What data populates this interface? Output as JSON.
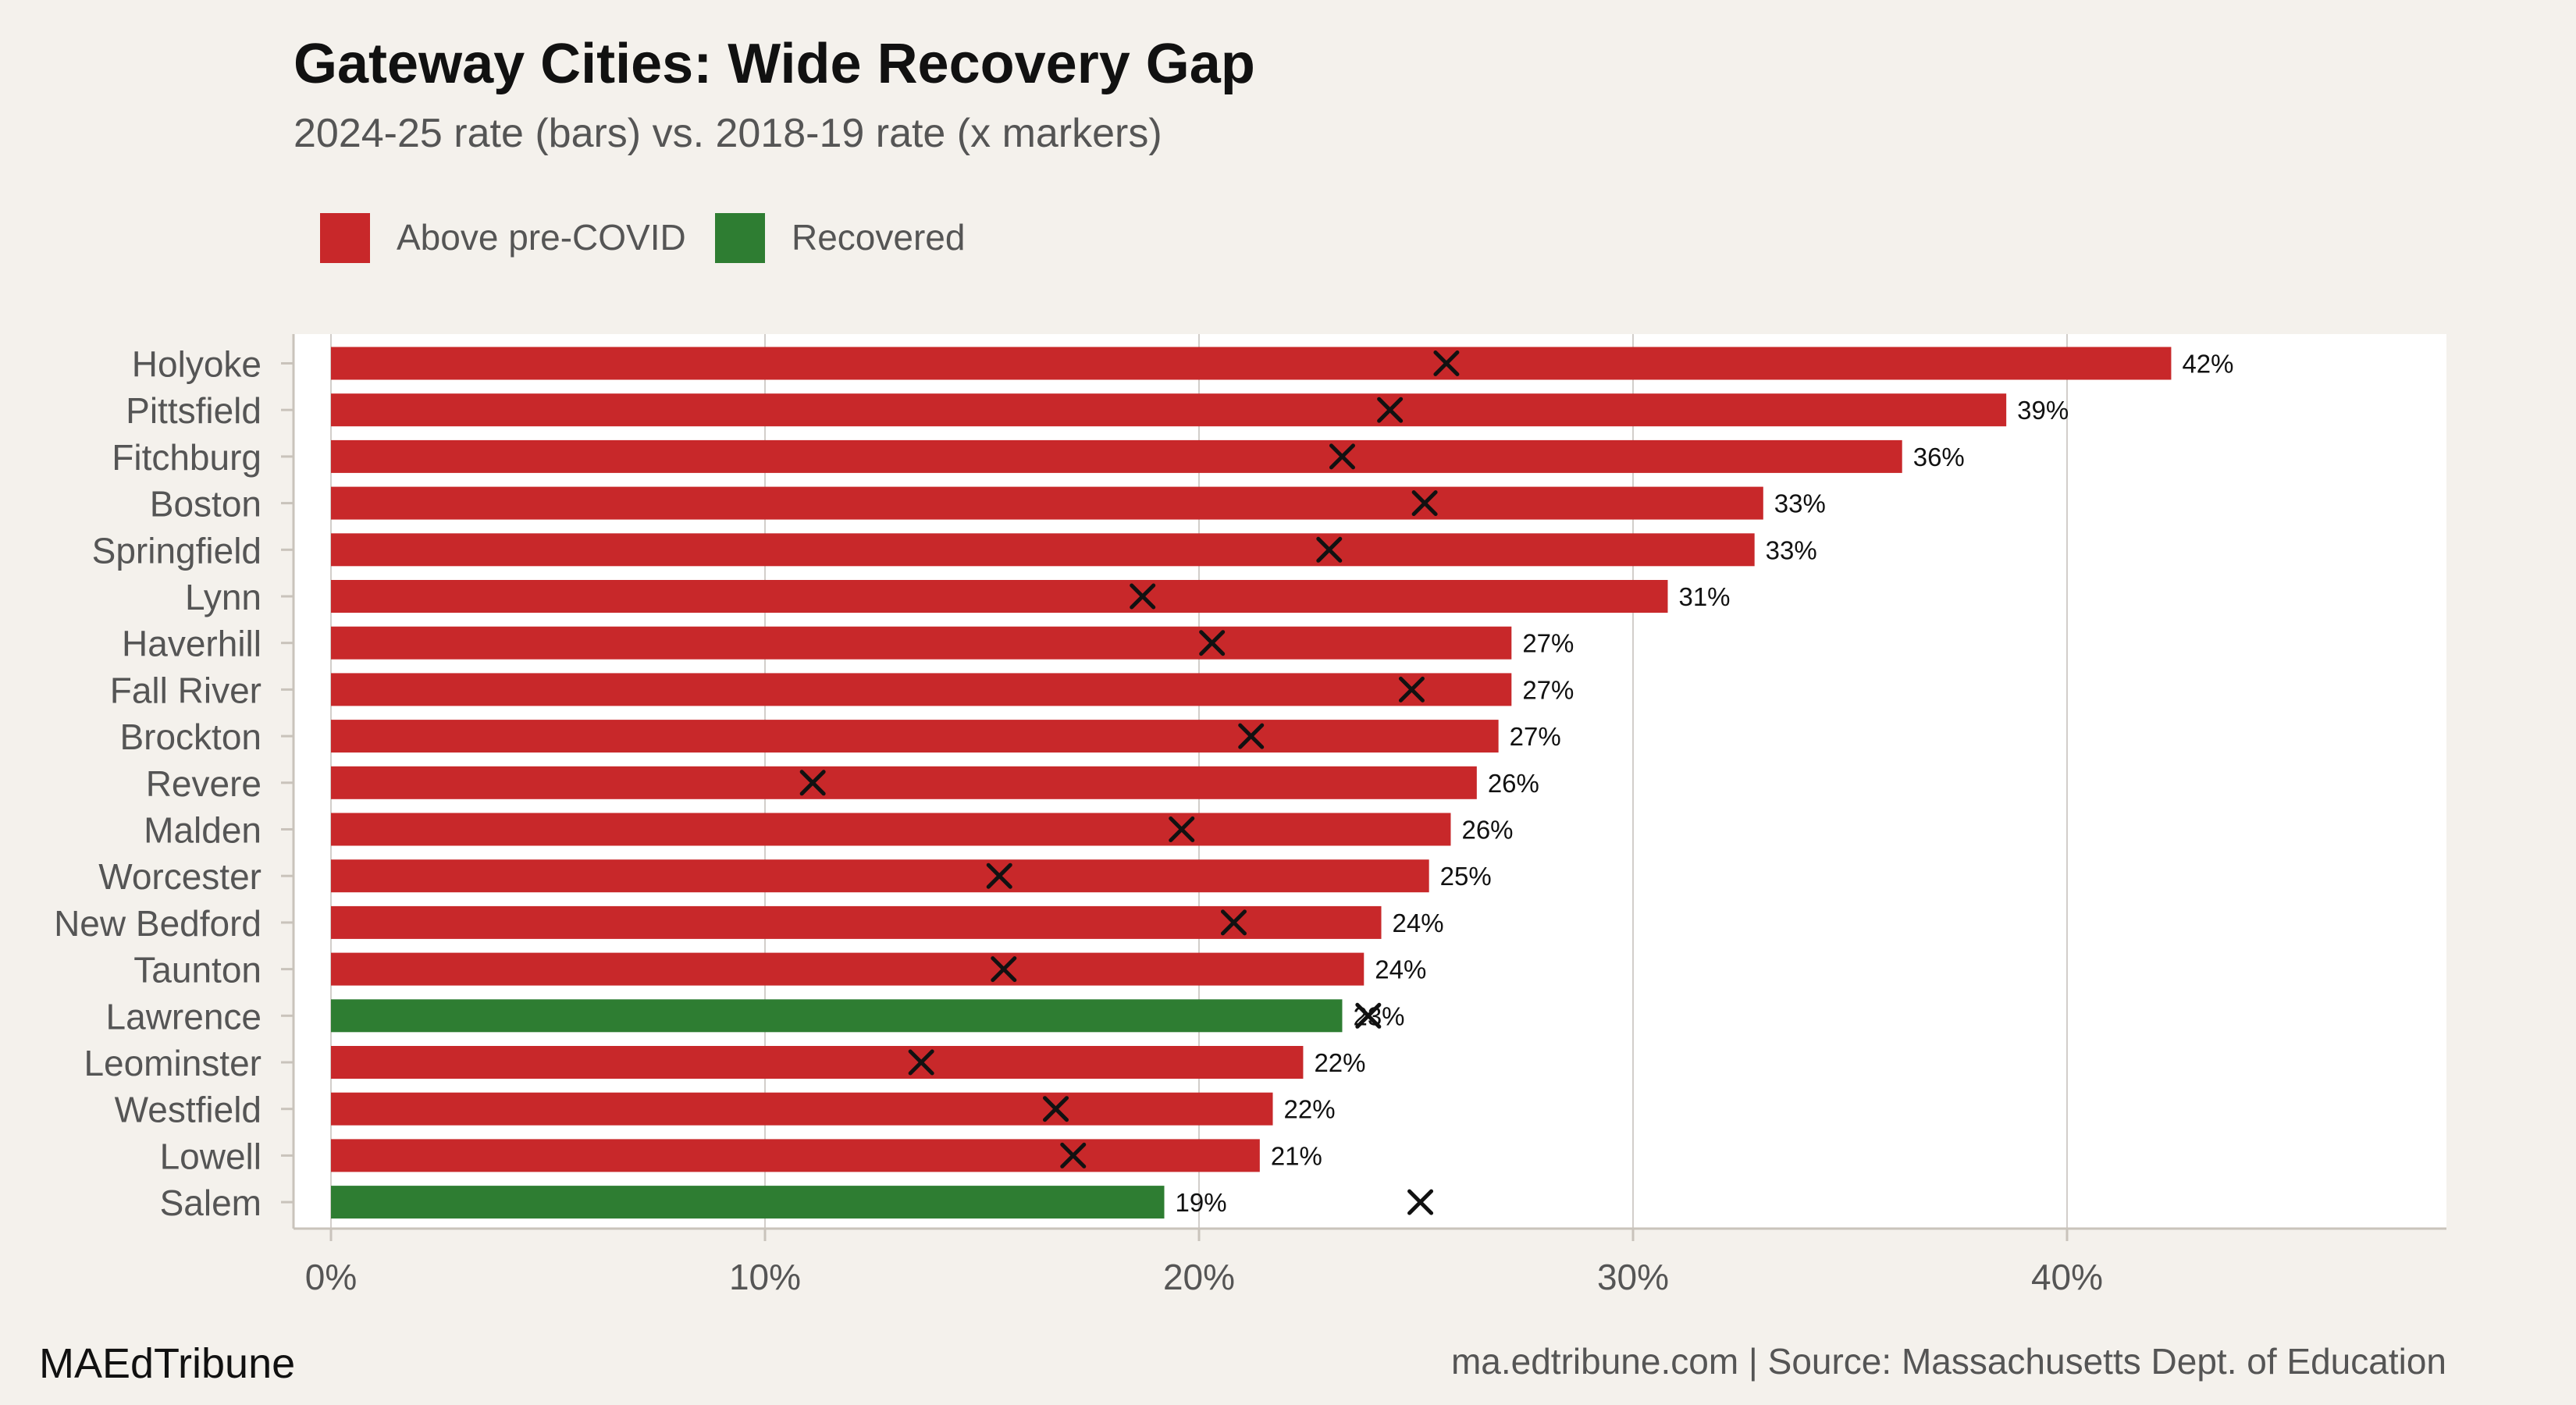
{
  "title": "Gateway Cities: Wide Recovery Gap",
  "subtitle": "2024-25 rate (bars) vs. 2018-19 rate (x markers)",
  "branding": "MAEdTribune",
  "source": "ma.edtribune.com | Source: Massachusetts Dept. of Education",
  "colors": {
    "background": "#f4f1ec",
    "panel": "#ffffff",
    "above": "#c8282a",
    "recovered": "#2e7d32",
    "grid": "#d2ceca",
    "axis": "#c9c3bb",
    "text": "#555555",
    "title": "#111111",
    "marker": "#111111"
  },
  "legend": {
    "placement": "top-left",
    "items": [
      {
        "label": "Above pre-COVID",
        "color_key": "above"
      },
      {
        "label": "Recovered",
        "color_key": "recovered"
      }
    ]
  },
  "chart_data": {
    "type": "bar",
    "orientation": "horizontal",
    "xlim": [
      0,
      48
    ],
    "x_ticks": [
      0,
      10,
      20,
      30,
      40
    ],
    "x_tick_labels": [
      "0%",
      "10%",
      "20%",
      "30%",
      "40%"
    ],
    "grid": true,
    "categories": [
      "Holyoke",
      "Pittsfield",
      "Fitchburg",
      "Boston",
      "Springfield",
      "Lynn",
      "Haverhill",
      "Fall River",
      "Brockton",
      "Revere",
      "Malden",
      "Worcester",
      "New Bedford",
      "Taunton",
      "Lawrence",
      "Leominster",
      "Westfield",
      "Lowell",
      "Salem"
    ],
    "series": [
      {
        "name": "2024-25 rate",
        "mark": "bar",
        "values": [
          42.4,
          38.6,
          36.2,
          33.0,
          32.8,
          30.8,
          27.2,
          27.2,
          26.9,
          26.4,
          25.8,
          25.3,
          24.2,
          23.8,
          23.3,
          22.4,
          21.7,
          21.4,
          19.2
        ],
        "labels": [
          "42%",
          "39%",
          "36%",
          "33%",
          "33%",
          "31%",
          "27%",
          "27%",
          "27%",
          "26%",
          "26%",
          "25%",
          "24%",
          "24%",
          "23%",
          "22%",
          "22%",
          "21%",
          "19%"
        ],
        "status": [
          "above",
          "above",
          "above",
          "above",
          "above",
          "above",
          "above",
          "above",
          "above",
          "above",
          "above",
          "above",
          "above",
          "above",
          "recovered",
          "above",
          "above",
          "above",
          "recovered"
        ]
      },
      {
        "name": "2018-19 rate",
        "mark": "x",
        "values": [
          25.7,
          24.4,
          23.3,
          25.2,
          23.0,
          18.7,
          20.3,
          24.9,
          21.2,
          11.1,
          19.6,
          15.4,
          20.8,
          15.5,
          23.9,
          13.6,
          16.7,
          17.1,
          25.1
        ]
      }
    ]
  }
}
